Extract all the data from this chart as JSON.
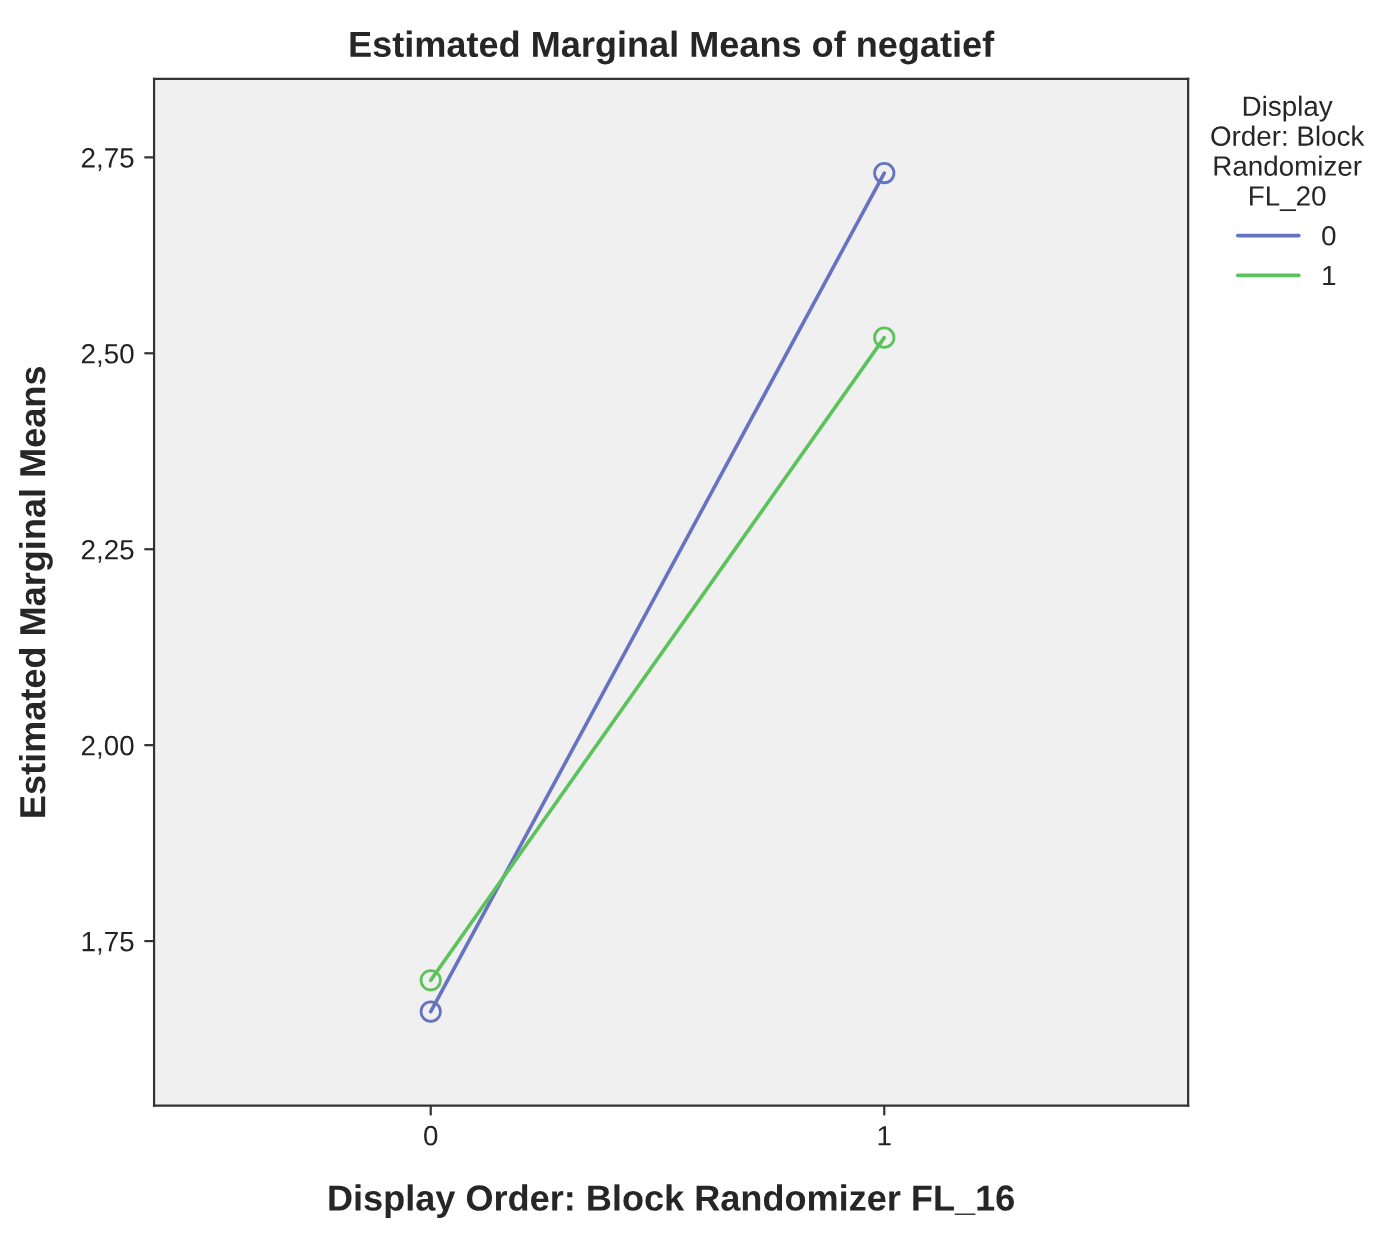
{
  "chart_data": {
    "type": "line",
    "title": "Estimated Marginal Means of negatief",
    "xlabel": "Display Order: Block Randomizer FL_16",
    "ylabel": "Estimated Marginal Means",
    "legend_title": "Display\nOrder: Block\nRandomizer\nFL_20",
    "categories": [
      "0",
      "1"
    ],
    "series": [
      {
        "name": "0",
        "color": "#6673c2",
        "values": [
          1.66,
          2.73
        ]
      },
      {
        "name": "1",
        "color": "#5cc35a",
        "values": [
          1.7,
          2.52
        ]
      }
    ],
    "ylim": [
      1.54,
      2.85
    ],
    "yticks": [
      {
        "value": 1.75,
        "label": "1,75"
      },
      {
        "value": 2.0,
        "label": "2,00"
      },
      {
        "value": 2.25,
        "label": "2,25"
      },
      {
        "value": 2.5,
        "label": "2,50"
      },
      {
        "value": 2.75,
        "label": "2,75"
      }
    ],
    "grid": false,
    "legend": "right",
    "marker": "circle",
    "line_style": "solid"
  }
}
